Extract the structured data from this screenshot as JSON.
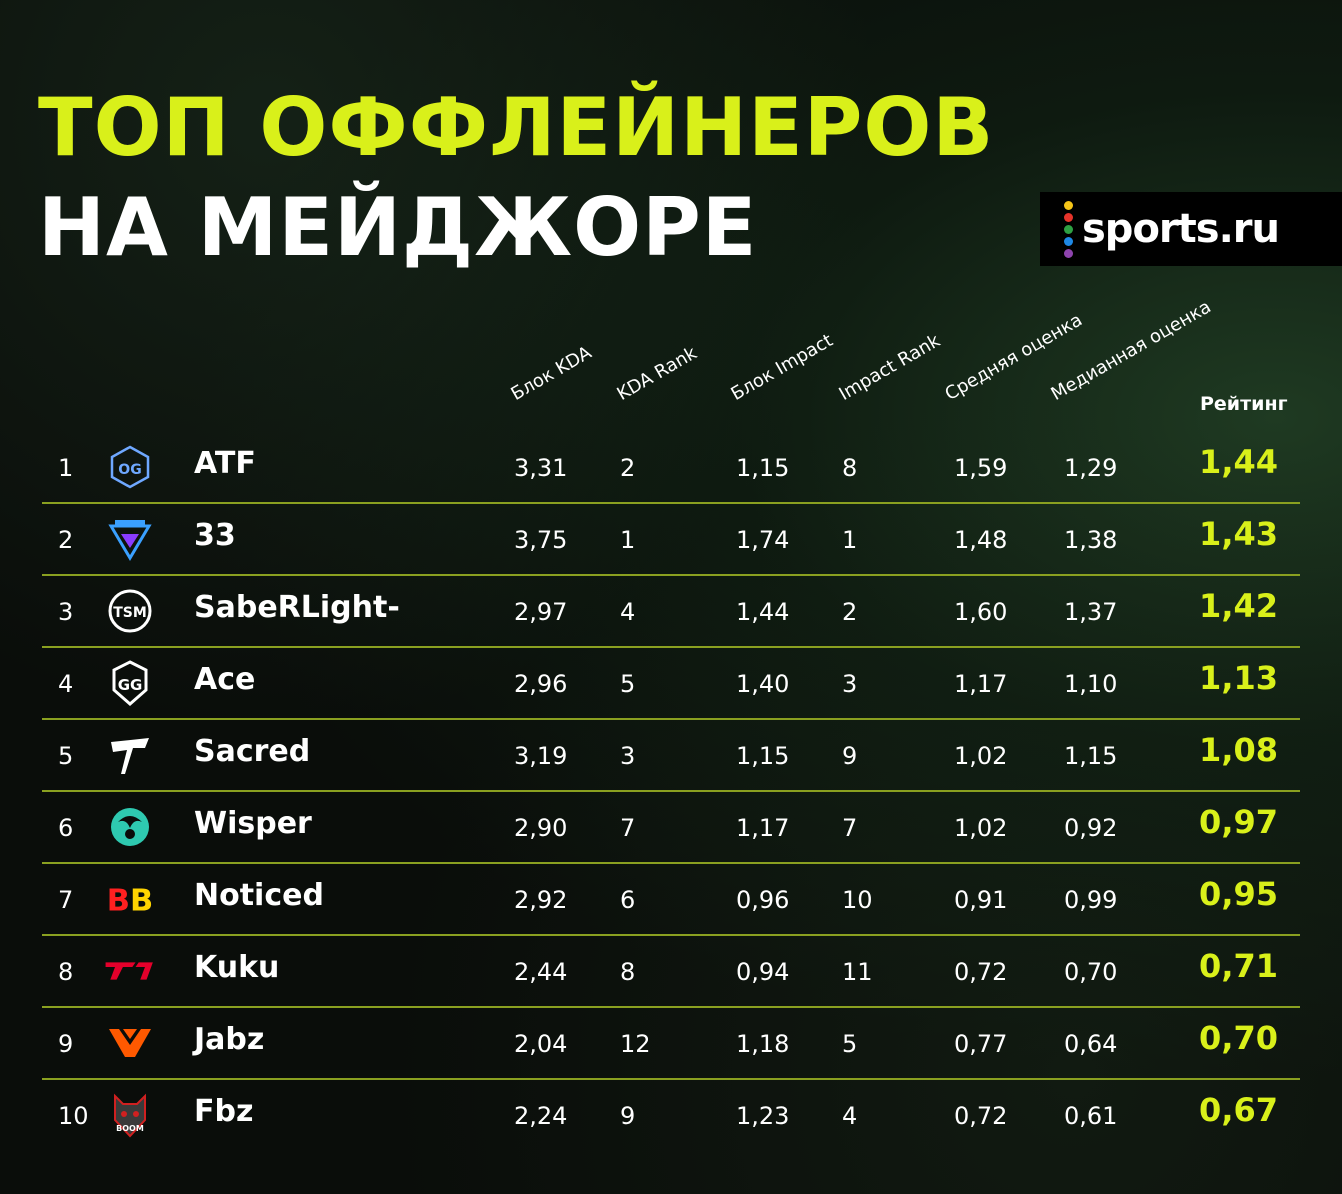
{
  "title": {
    "line1": "ТОП ОФФЛЕЙНЕРОВ",
    "line2": "НА МЕЙДЖОРЕ"
  },
  "brand": {
    "name": "sports.ru",
    "dot_colors": [
      "#f5c518",
      "#e5332a",
      "#2ea043",
      "#1e88e5",
      "#8e44ad"
    ]
  },
  "colors": {
    "accent": "#d9f01a",
    "separator": "#8aa020"
  },
  "columns": [
    "Блок KDA",
    "KDA Rank",
    "Блок Impact",
    "Impact Rank",
    "Средняя оценка",
    "Медианная оценка",
    "Рейтинг"
  ],
  "rows": [
    {
      "num": "1",
      "team_logo": "og-logo-icon",
      "player": "ATF",
      "kda": "3,31",
      "kda_rank": "2",
      "impact": "1,15",
      "impact_rank": "8",
      "avg": "1,59",
      "median": "1,29",
      "rating": "1,44"
    },
    {
      "num": "2",
      "team_logo": "tundra-logo-icon",
      "player": "33",
      "kda": "3,75",
      "kda_rank": "1",
      "impact": "1,74",
      "impact_rank": "1",
      "avg": "1,48",
      "median": "1,38",
      "rating": "1,43"
    },
    {
      "num": "3",
      "team_logo": "tsm-logo-icon",
      "player": "SabeRLight-",
      "kda": "2,97",
      "kda_rank": "4",
      "impact": "1,44",
      "impact_rank": "2",
      "avg": "1,60",
      "median": "1,37",
      "rating": "1,42"
    },
    {
      "num": "4",
      "team_logo": "gladiators-logo-icon",
      "player": "Ace",
      "kda": "2,96",
      "kda_rank": "5",
      "impact": "1,40",
      "impact_rank": "3",
      "avg": "1,17",
      "median": "1,10",
      "rating": "1,13"
    },
    {
      "num": "5",
      "team_logo": "thunder-logo-icon",
      "player": "Sacred",
      "kda": "3,19",
      "kda_rank": "3",
      "impact": "1,15",
      "impact_rank": "9",
      "avg": "1,02",
      "median": "1,15",
      "rating": "1,08"
    },
    {
      "num": "6",
      "team_logo": "beastcoast-logo-icon",
      "player": "Wisper",
      "kda": "2,90",
      "kda_rank": "7",
      "impact": "1,17",
      "impact_rank": "7",
      "avg": "1,02",
      "median": "0,92",
      "rating": "0,97"
    },
    {
      "num": "7",
      "team_logo": "betboom-logo-icon",
      "player": "Noticed",
      "kda": "2,92",
      "kda_rank": "6",
      "impact": "0,96",
      "impact_rank": "10",
      "avg": "0,91",
      "median": "0,99",
      "rating": "0,95"
    },
    {
      "num": "8",
      "team_logo": "t1-logo-icon",
      "player": "Kuku",
      "kda": "2,44",
      "kda_rank": "8",
      "impact": "0,94",
      "impact_rank": "11",
      "avg": "0,72",
      "median": "0,70",
      "rating": "0,71"
    },
    {
      "num": "9",
      "team_logo": "fnatic-logo-icon",
      "player": "Jabz",
      "kda": "2,04",
      "kda_rank": "12",
      "impact": "1,18",
      "impact_rank": "5",
      "avg": "0,77",
      "median": "0,64",
      "rating": "0,70"
    },
    {
      "num": "10",
      "team_logo": "boom-logo-icon",
      "player": "Fbz",
      "kda": "2,24",
      "kda_rank": "9",
      "impact": "1,23",
      "impact_rank": "4",
      "avg": "0,72",
      "median": "0,61",
      "rating": "0,67"
    }
  ]
}
